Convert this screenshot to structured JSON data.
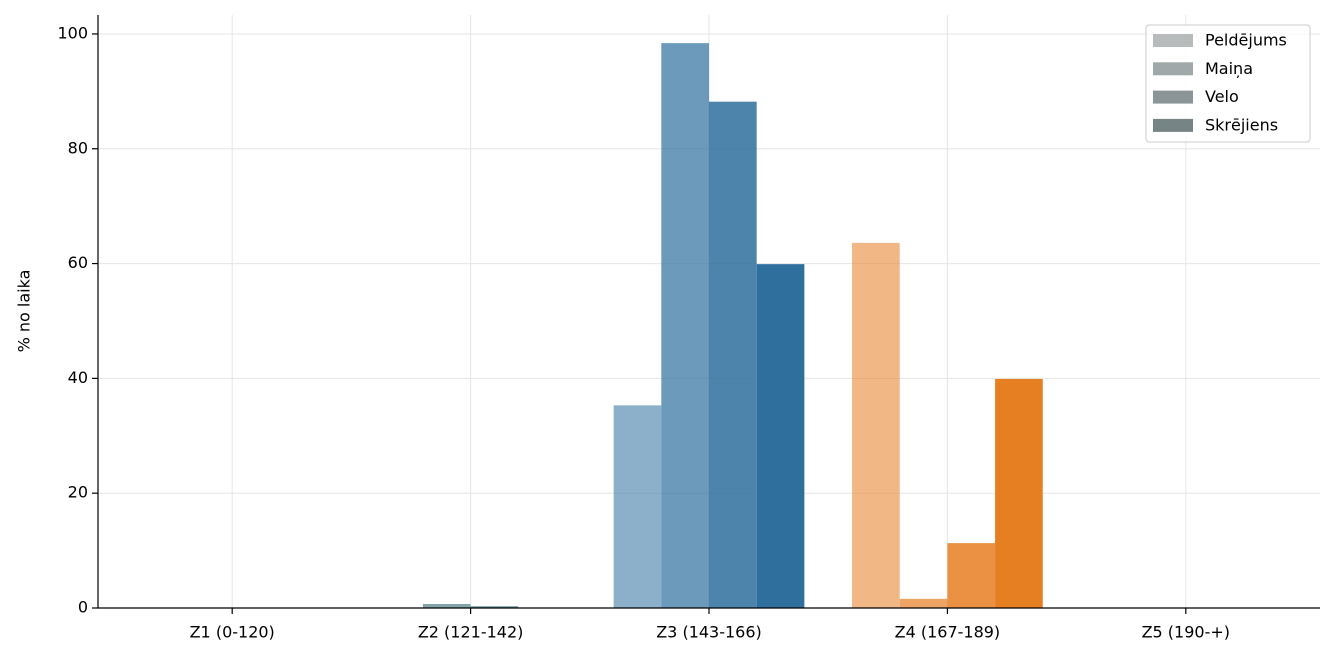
{
  "chart_data": {
    "type": "bar",
    "y_label": "% no laika",
    "categories": [
      "Z1 (0-120)",
      "Z2 (121-142)",
      "Z3 (143-166)",
      "Z4 (167-189)",
      "Z5 (190-+)"
    ],
    "category_colors": [
      "#7f8c8d",
      "#4f7f85",
      "#2e6f9e",
      "#e67e22",
      "#c0392b"
    ],
    "series": [
      {
        "name": "Peldējums",
        "color": "#b8bbbc",
        "opacity": 0.55,
        "values": [
          0,
          0,
          35.3,
          63.6,
          0
        ]
      },
      {
        "name": "Maiņa",
        "color": "#a0a8a9",
        "opacity": 0.7,
        "values": [
          0,
          0.7,
          98.4,
          1.6,
          0
        ]
      },
      {
        "name": "Velo",
        "color": "#8b9597",
        "opacity": 0.85,
        "values": [
          0,
          0.3,
          88.2,
          11.3,
          0
        ]
      },
      {
        "name": "Skrējiens",
        "color": "#778485",
        "opacity": 1.0,
        "values": [
          0,
          0,
          59.9,
          39.9,
          0
        ]
      }
    ],
    "ylim": [
      0,
      103.3
    ],
    "yticks": [
      0,
      20,
      40,
      60,
      80,
      100
    ],
    "grid": true,
    "legend": "upper-right"
  }
}
